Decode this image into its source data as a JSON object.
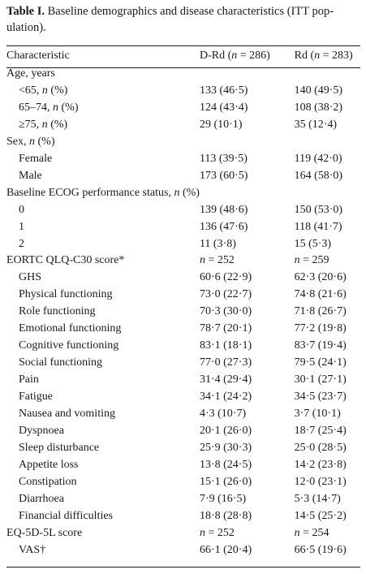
{
  "caption": {
    "label": "Table I.",
    "text_line1": "Baseline demographics and disease characteristics (ITT pop-",
    "text_line2": "ulation)."
  },
  "header": {
    "col1": "Characteristic",
    "col2": "D-Rd (n = 286)",
    "col3": "Rd (n = 283)"
  },
  "rows": [
    {
      "label": "Age, years",
      "drd": "",
      "rd": "",
      "indent": false
    },
    {
      "label": "<65, n (%)",
      "drd": "133 (46·5)",
      "rd": "140 (49·5)",
      "indent": true
    },
    {
      "label": "65–74, n (%)",
      "drd": "124 (43·4)",
      "rd": "108 (38·2)",
      "indent": true
    },
    {
      "label": "≥75, n (%)",
      "drd": "29 (10·1)",
      "rd": "35 (12·4)",
      "indent": true
    },
    {
      "label": "Sex, n (%)",
      "drd": "",
      "rd": "",
      "indent": false
    },
    {
      "label": "Female",
      "drd": "113 (39·5)",
      "rd": "119 (42·0)",
      "indent": true
    },
    {
      "label": "Male",
      "drd": "173 (60·5)",
      "rd": "164 (58·0)",
      "indent": true
    },
    {
      "label": "Baseline ECOG performance status, n (%)",
      "drd": "",
      "rd": "",
      "indent": false
    },
    {
      "label": "0",
      "drd": "139 (48·6)",
      "rd": "150 (53·0)",
      "indent": true
    },
    {
      "label": "1",
      "drd": "136 (47·6)",
      "rd": "118 (41·7)",
      "indent": true
    },
    {
      "label": "2",
      "drd": "11 (3·8)",
      "rd": "15 (5·3)",
      "indent": true
    },
    {
      "label": "EORTC QLQ-C30 score*",
      "drd": "n = 252",
      "rd": "n = 259",
      "indent": false
    },
    {
      "label": "GHS",
      "drd": "60·6 (22·9)",
      "rd": "62·3 (20·6)",
      "indent": true
    },
    {
      "label": "Physical functioning",
      "drd": "73·0 (22·7)",
      "rd": "74·8 (21·6)",
      "indent": true
    },
    {
      "label": "Role functioning",
      "drd": "70·3 (30·0)",
      "rd": "71·8 (26·7)",
      "indent": true
    },
    {
      "label": "Emotional functioning",
      "drd": "78·7 (20·1)",
      "rd": "77·2 (19·8)",
      "indent": true
    },
    {
      "label": "Cognitive functioning",
      "drd": "83·1 (18·1)",
      "rd": "83·7 (19·4)",
      "indent": true
    },
    {
      "label": "Social functioning",
      "drd": "77·0 (27·3)",
      "rd": "79·5 (24·1)",
      "indent": true
    },
    {
      "label": "Pain",
      "drd": "31·4 (29·4)",
      "rd": "30·1 (27·1)",
      "indent": true
    },
    {
      "label": "Fatigue",
      "drd": "34·1 (24·2)",
      "rd": "34·5 (23·7)",
      "indent": true
    },
    {
      "label": "Nausea and vomiting",
      "drd": "4·3 (10·7)",
      "rd": "3·7 (10·1)",
      "indent": true
    },
    {
      "label": "Dyspnoea",
      "drd": "20·1 (26·0)",
      "rd": "18·7 (25·4)",
      "indent": true
    },
    {
      "label": "Sleep disturbance",
      "drd": "25·9 (30·3)",
      "rd": "25·0 (28·5)",
      "indent": true
    },
    {
      "label": "Appetite loss",
      "drd": "13·8 (24·5)",
      "rd": "14·2 (23·8)",
      "indent": true
    },
    {
      "label": "Constipation",
      "drd": "15·1 (26·0)",
      "rd": "12·0 (23·1)",
      "indent": true
    },
    {
      "label": "Diarrhoea",
      "drd": "7·9 (16·5)",
      "rd": "5·3 (14·7)",
      "indent": true
    },
    {
      "label": "Financial difficulties",
      "drd": "18·8 (28·8)",
      "rd": "14·5 (25·2)",
      "indent": true
    },
    {
      "label": "EQ-5D-5L score",
      "drd": "n = 252",
      "rd": "n = 254",
      "indent": false
    },
    {
      "label": "VAS†",
      "drd": "66·1 (20·4)",
      "rd": "66·5 (19·6)",
      "indent": true
    }
  ]
}
